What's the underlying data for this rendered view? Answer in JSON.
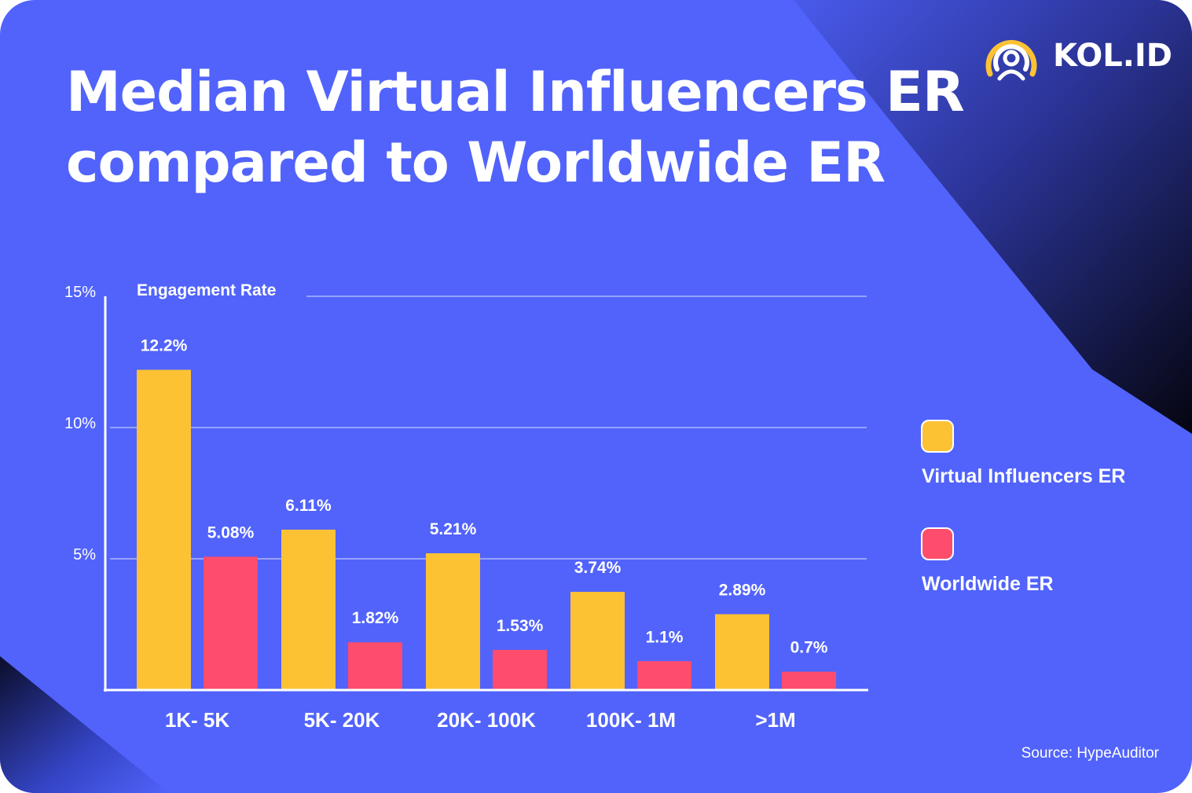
{
  "colors": {
    "background": "#5163fb",
    "virtual": "#fdc234",
    "worldwide": "#fe4c6c",
    "text": "#ffffff"
  },
  "brand": {
    "name": "KOL.ID",
    "logo_icon": "broadcast-person-icon"
  },
  "title": {
    "line1": "Median Virtual Influencers ER",
    "line2": "compared to Worldwide ER"
  },
  "chart_data": {
    "type": "bar",
    "ylabel": "Engagement Rate",
    "ylim": [
      0,
      15
    ],
    "yticks": [
      {
        "value": 5,
        "label": "5%"
      },
      {
        "value": 10,
        "label": "10%"
      },
      {
        "value": 15,
        "label": "15%"
      }
    ],
    "grid": true,
    "categories": [
      "1K- 5K",
      "5K- 20K",
      "20K- 100K",
      "100K- 1M",
      ">1M"
    ],
    "series": [
      {
        "name": "Virtual Influencers ER",
        "color": "#fdc234",
        "values": [
          12.2,
          6.11,
          5.21,
          3.74,
          2.89
        ],
        "labels": [
          "12.2%",
          "6.11%",
          "5.21%",
          "3.74%",
          "2.89%"
        ]
      },
      {
        "name": "Worldwide ER",
        "color": "#fe4c6c",
        "values": [
          5.08,
          1.82,
          1.53,
          1.1,
          0.7
        ],
        "labels": [
          "5.08%",
          "1.82%",
          "1.53%",
          "1.1%",
          "0.7%"
        ]
      }
    ],
    "legend_position": "right"
  },
  "source": "Source: HypeAuditor"
}
